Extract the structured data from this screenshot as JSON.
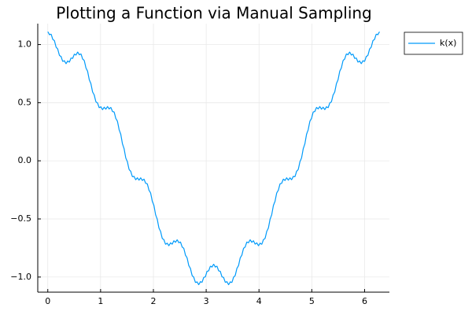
{
  "chart_data": {
    "type": "line",
    "title": "Plotting a Function via Manual Sampling",
    "xlabel": "",
    "ylabel": "",
    "xlim": [
      -0.19,
      6.47
    ],
    "ylim": [
      -1.13,
      1.18
    ],
    "x_ticks": [
      0,
      1,
      2,
      3,
      4,
      5,
      6
    ],
    "y_ticks": [
      -1.0,
      -0.5,
      0.0,
      0.5,
      1.0
    ],
    "x_tick_labels": [
      "0",
      "1",
      "2",
      "3",
      "4",
      "5",
      "6"
    ],
    "y_tick_labels": [
      "−1.0",
      "−0.5",
      "0.0",
      "0.5",
      "1.0"
    ],
    "grid": true,
    "legend_position": "top-right, outside plot area",
    "series": [
      {
        "name": "k(x)",
        "color": "#009AFA",
        "x_range": [
          0,
          6.2832
        ],
        "samples": 400,
        "points": [
          [
            0.0,
            1.1
          ],
          [
            0.1,
            1.07
          ],
          [
            0.2,
            0.98
          ],
          [
            0.3,
            0.86
          ],
          [
            0.4,
            0.85
          ],
          [
            0.55,
            0.92
          ],
          [
            0.65,
            0.89
          ],
          [
            0.8,
            0.71
          ],
          [
            0.95,
            0.52
          ],
          [
            1.05,
            0.45
          ],
          [
            1.2,
            0.46
          ],
          [
            1.35,
            0.37
          ],
          [
            1.45,
            0.17
          ],
          [
            1.6,
            -0.1
          ],
          [
            1.7,
            -0.16
          ],
          [
            1.85,
            -0.17
          ],
          [
            2.0,
            -0.33
          ],
          [
            2.15,
            -0.58
          ],
          [
            2.25,
            -0.69
          ],
          [
            2.4,
            -0.71
          ],
          [
            2.55,
            -0.7
          ],
          [
            2.65,
            -0.83
          ],
          [
            2.8,
            -1.02
          ],
          [
            2.9,
            -1.04
          ],
          [
            3.0,
            -0.96
          ],
          [
            3.14,
            -0.89
          ],
          [
            3.28,
            -0.96
          ],
          [
            3.4,
            -1.05
          ],
          [
            3.5,
            -1.02
          ],
          [
            3.62,
            -0.83
          ],
          [
            3.75,
            -0.71
          ],
          [
            3.88,
            -0.7
          ],
          [
            4.0,
            -0.69
          ],
          [
            4.15,
            -0.58
          ],
          [
            4.28,
            -0.33
          ],
          [
            4.45,
            -0.17
          ],
          [
            4.55,
            -0.16
          ],
          [
            4.7,
            -0.1
          ],
          [
            4.82,
            0.17
          ],
          [
            4.95,
            0.37
          ],
          [
            5.05,
            0.45
          ],
          [
            5.2,
            0.46
          ],
          [
            5.35,
            0.53
          ],
          [
            5.5,
            0.71
          ],
          [
            5.65,
            0.89
          ],
          [
            5.75,
            0.92
          ],
          [
            5.85,
            0.87
          ],
          [
            5.95,
            0.86
          ],
          [
            6.1,
            0.98
          ],
          [
            6.28,
            1.1
          ]
        ]
      }
    ]
  },
  "colors": {
    "axis": "#000000",
    "grid": "#e6e6e6",
    "legend_border": "#000000"
  }
}
